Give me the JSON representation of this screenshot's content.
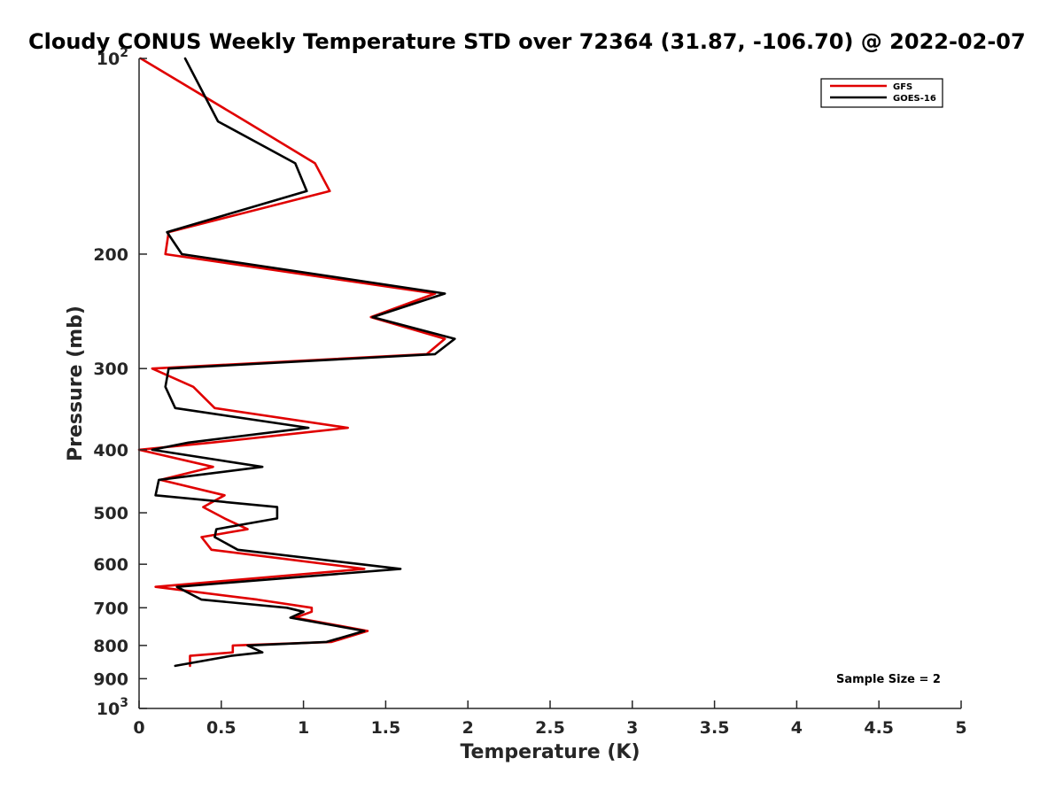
{
  "chart_data": {
    "type": "line",
    "title": "Cloudy CONUS Weekly Temperature STD over 72364 (31.87, -106.70) @ 2022-02-07",
    "xlabel": "Temperature (K)",
    "ylabel": "Pressure (mb)",
    "xlim": [
      0,
      5
    ],
    "ylim": [
      1000,
      100
    ],
    "yscale": "log",
    "y_reversed": true,
    "grid": false,
    "legend_position": "top-right",
    "x_ticks": [
      0,
      0.5,
      1,
      1.5,
      2,
      2.5,
      3,
      3.5,
      4,
      4.5,
      5
    ],
    "x_tick_labels": [
      "0",
      "0.5",
      "1",
      "1.5",
      "2",
      "2.5",
      "3",
      "3.5",
      "4",
      "4.5",
      "5"
    ],
    "y_ticks": [
      100,
      200,
      300,
      400,
      500,
      600,
      700,
      800,
      900,
      1000
    ],
    "y_tick_labels": [
      {
        "base": "10",
        "exp": "2"
      },
      {
        "base": "200",
        "exp": ""
      },
      {
        "base": "300",
        "exp": ""
      },
      {
        "base": "400",
        "exp": ""
      },
      {
        "base": "500",
        "exp": ""
      },
      {
        "base": "600",
        "exp": ""
      },
      {
        "base": "700",
        "exp": ""
      },
      {
        "base": "800",
        "exp": ""
      },
      {
        "base": "900",
        "exp": ""
      },
      {
        "base": "10",
        "exp": "3"
      }
    ],
    "annotation": "Sample Size = 2",
    "series": [
      {
        "name": "GFS",
        "color": "#e00000",
        "x": [
          0.01,
          0.65,
          1.07,
          1.16,
          0.18,
          0.16,
          1.8,
          1.41,
          1.86,
          1.75,
          0.08,
          0.33,
          0.46,
          1.27,
          0.44,
          0.0,
          0.45,
          0.13,
          0.52,
          0.39,
          0.52,
          0.66,
          0.38,
          0.44,
          1.37,
          0.1,
          0.72,
          1.05,
          1.05,
          0.95,
          1.39,
          1.17,
          0.57,
          0.57,
          0.31,
          0.31
        ],
        "y": [
          100,
          125,
          145,
          160,
          185,
          200,
          230,
          250,
          270,
          285,
          300,
          320,
          345,
          370,
          390,
          400,
          425,
          445,
          470,
          490,
          510,
          530,
          545,
          570,
          610,
          650,
          680,
          700,
          710,
          725,
          760,
          790,
          800,
          820,
          830,
          860
        ]
      },
      {
        "name": "GOES-16",
        "color": "#000000",
        "x": [
          0.28,
          0.48,
          0.95,
          1.02,
          0.17,
          0.26,
          1.86,
          1.42,
          1.92,
          1.8,
          0.18,
          0.16,
          0.22,
          1.03,
          0.3,
          0.08,
          0.75,
          0.12,
          0.1,
          0.84,
          0.84,
          0.47,
          0.46,
          0.6,
          1.59,
          0.23,
          0.38,
          0.9,
          1.0,
          0.92,
          1.37,
          1.14,
          0.66,
          0.75,
          0.56,
          0.22
        ],
        "y": [
          100,
          125,
          145,
          160,
          185,
          200,
          230,
          250,
          270,
          285,
          300,
          320,
          345,
          370,
          390,
          400,
          425,
          445,
          470,
          490,
          510,
          530,
          545,
          570,
          610,
          650,
          680,
          700,
          710,
          725,
          760,
          790,
          800,
          820,
          830,
          860
        ]
      }
    ]
  }
}
